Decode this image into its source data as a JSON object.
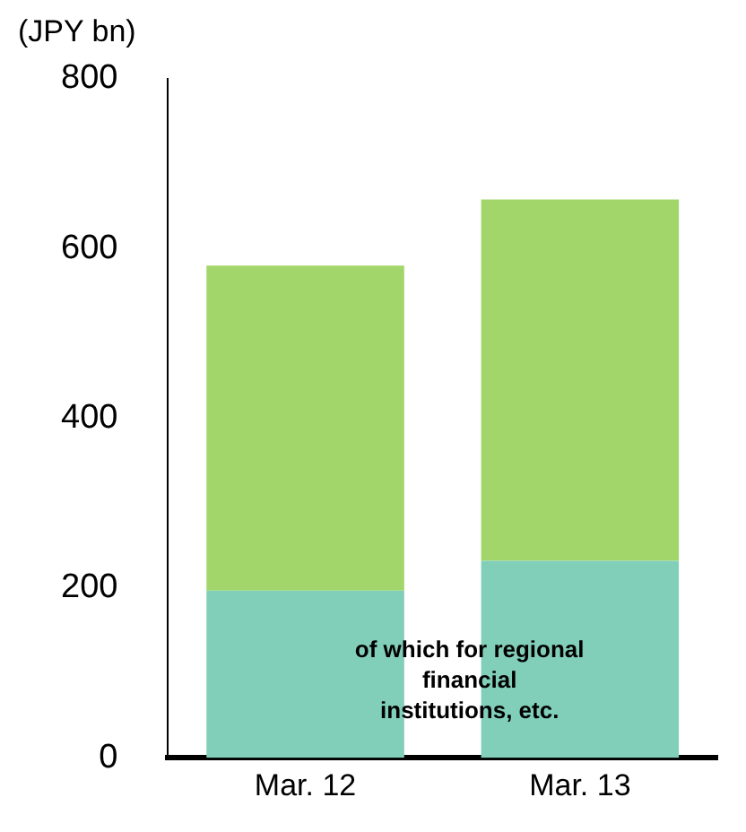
{
  "chart_data": {
    "type": "bar",
    "ylabel": "(JPY bn)",
    "categories": [
      "Mar. 12",
      "Mar. 13"
    ],
    "stacked": true,
    "series": [
      {
        "name": "of which for regional financial institutions, etc.",
        "color": "#82cfb9",
        "values": [
          197,
          232
        ]
      },
      {
        "color": "#a2d66a",
        "values": [
          383,
          426
        ]
      }
    ],
    "ylim": [
      0,
      800
    ],
    "yticks": [
      0,
      200,
      400,
      600,
      800
    ],
    "grid": false,
    "legend": false
  }
}
